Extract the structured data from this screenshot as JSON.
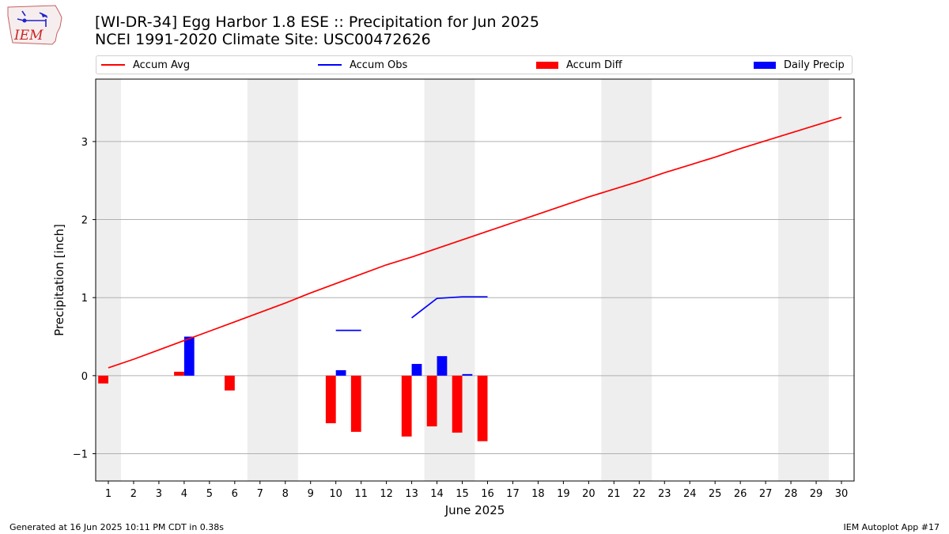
{
  "logo": {
    "text": "IEM",
    "icon": "iowa-state-outline-weather-icon"
  },
  "title": {
    "line1": "[WI-DR-34] Egg Harbor 1.8 ESE :: Precipitation for Jun 2025",
    "line2": "NCEI 1991-2020 Climate Site: USC00472626"
  },
  "legend": [
    {
      "label": "Accum Avg",
      "kind": "line",
      "color": "#ff0000"
    },
    {
      "label": "Accum Obs",
      "kind": "line",
      "color": "#0000ff"
    },
    {
      "label": "Accum Diff",
      "kind": "bar",
      "color": "#ff0000"
    },
    {
      "label": "Daily Precip",
      "kind": "bar",
      "color": "#0000ff"
    }
  ],
  "footer": {
    "left": "Generated at 16 Jun 2025 10:11 PM CDT in 0.38s",
    "right": "IEM Autoplot App #17"
  },
  "colors": {
    "avg": "#ff0000",
    "obs": "#0000ff",
    "diff": "#ff0000",
    "daily": "#0000ff",
    "weekend": "#eeeeee",
    "grid": "#b0b0b0"
  },
  "chart_data": {
    "type": "bar",
    "title": "[WI-DR-34] Egg Harbor 1.8 ESE :: Precipitation for Jun 2025",
    "subtitle": "NCEI 1991-2020 Climate Site: USC00472626",
    "xlabel": "June 2025",
    "ylabel": "Precipitation [inch]",
    "x": [
      1,
      2,
      3,
      4,
      5,
      6,
      7,
      8,
      9,
      10,
      11,
      12,
      13,
      14,
      15,
      16,
      17,
      18,
      19,
      20,
      21,
      22,
      23,
      24,
      25,
      26,
      27,
      28,
      29,
      30
    ],
    "xlim": [
      0.5,
      30.5
    ],
    "ylim": [
      -1.35,
      3.8
    ],
    "yticks": [
      -1,
      0,
      1,
      2,
      3
    ],
    "grid": true,
    "legend_position": "top",
    "weekend_shading": [
      [
        0.5,
        1.5
      ],
      [
        6.5,
        8.5
      ],
      [
        13.5,
        15.5
      ],
      [
        20.5,
        22.5
      ],
      [
        27.5,
        29.5
      ]
    ],
    "series": [
      {
        "name": "Accum Avg",
        "type": "line",
        "x": [
          1,
          2,
          3,
          4,
          5,
          6,
          7,
          8,
          9,
          10,
          11,
          12,
          13,
          14,
          15,
          16,
          17,
          18,
          19,
          20,
          21,
          22,
          23,
          24,
          25,
          26,
          27,
          28,
          29,
          30
        ],
        "values": [
          0.1,
          0.21,
          0.33,
          0.45,
          0.57,
          0.69,
          0.81,
          0.93,
          1.06,
          1.18,
          1.3,
          1.42,
          1.52,
          1.63,
          1.74,
          1.85,
          1.96,
          2.07,
          2.18,
          2.29,
          2.39,
          2.49,
          2.6,
          2.7,
          2.8,
          2.91,
          3.01,
          3.11,
          3.21,
          3.31
        ]
      },
      {
        "name": "Accum Obs",
        "type": "line",
        "segments": [
          {
            "x": [
              10,
              11
            ],
            "values": [
              0.58,
              0.58
            ]
          },
          {
            "x": [
              13,
              14,
              15,
              16
            ],
            "values": [
              0.74,
              0.99,
              1.01,
              1.01
            ]
          }
        ]
      },
      {
        "name": "Accum Diff",
        "type": "bar",
        "offset": -0.2,
        "x": [
          1,
          4,
          6,
          10,
          11,
          13,
          14,
          15,
          16
        ],
        "values": [
          -0.1,
          0.05,
          -0.19,
          -0.61,
          -0.72,
          -0.78,
          -0.65,
          -0.73,
          -0.84
        ]
      },
      {
        "name": "Daily Precip",
        "type": "bar",
        "offset": 0.2,
        "x": [
          4,
          10,
          13,
          14,
          15
        ],
        "values": [
          0.5,
          0.07,
          0.15,
          0.25,
          0.02
        ]
      }
    ]
  }
}
